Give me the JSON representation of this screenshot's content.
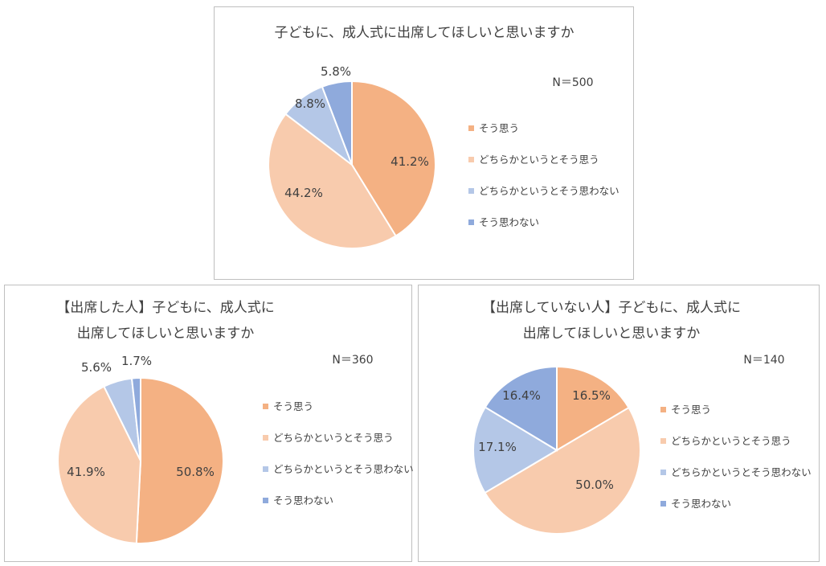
{
  "colors": {
    "sou_omou": "#F4B183",
    "dochiraka_sou_omou": "#F8CBAD",
    "dochiraka_sou_omowanai": "#B4C7E7",
    "sou_omowanai": "#8FAADC"
  },
  "legend": [
    "そう思う",
    "どちらかというとそう思う",
    "どちらかというとそう思わない",
    "そう思わない"
  ],
  "chart_data": [
    {
      "type": "pie",
      "title_lines": [
        "子どもに、成人式に出席してほしいと思いますか"
      ],
      "n_label": "N＝500",
      "categories": [
        "そう思う",
        "どちらかというとそう思う",
        "どちらかというとそう思わない",
        "そう思わない"
      ],
      "values": [
        41.2,
        44.2,
        8.8,
        5.8
      ],
      "labels": [
        "41.2%",
        "44.2%",
        "8.8%",
        "5.8%"
      ],
      "legend_position": "right"
    },
    {
      "type": "pie",
      "title_lines": [
        "【出席した人】子どもに、成人式に",
        "出席してほしいと思いますか"
      ],
      "n_label": "N＝360",
      "categories": [
        "そう思う",
        "どちらかというとそう思う",
        "どちらかというとそう思わない",
        "そう思わない"
      ],
      "values": [
        50.8,
        41.9,
        5.6,
        1.7
      ],
      "labels": [
        "50.8%",
        "41.9%",
        "5.6%",
        "1.7%"
      ],
      "legend_position": "right"
    },
    {
      "type": "pie",
      "title_lines": [
        "【出席していない人】子どもに、成人式に",
        "出席してほしいと思いますか"
      ],
      "n_label": "N＝140",
      "categories": [
        "そう思う",
        "どちらかというとそう思う",
        "どちらかというとそう思わない",
        "そう思わない"
      ],
      "values": [
        16.5,
        50.0,
        17.1,
        16.4
      ],
      "labels": [
        "16.5%",
        "50.0%",
        "17.1%",
        "16.4%"
      ],
      "legend_position": "right"
    }
  ]
}
